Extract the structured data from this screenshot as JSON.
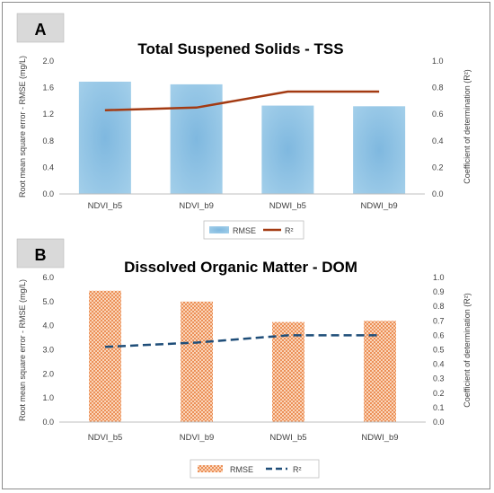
{
  "chart_data": [
    {
      "panel_label": "A",
      "type": "bar",
      "title": "Total Suspened Solids - TSS",
      "categories": [
        "NDVI_b5",
        "NDVI_b9",
        "NDWI_b5",
        "NDWI_b9"
      ],
      "ylabel": "Root mean square error - RMSE (mg/L)",
      "y2label": "Coefficient of determination (R²)",
      "ylim": [
        0,
        2.0
      ],
      "y2lim": [
        0,
        1.0
      ],
      "yticks": [
        "0.0",
        "0.4",
        "0.8",
        "1.2",
        "1.6",
        "2.0"
      ],
      "y2ticks": [
        "0.0",
        "0.2",
        "0.4",
        "0.6",
        "0.8",
        "1.0"
      ],
      "grid": false,
      "legend_position": "bottom",
      "series": [
        {
          "name": "RMSE",
          "kind": "bar",
          "axis": "left",
          "color": "#8fc3e3",
          "pattern": "solid",
          "values": [
            1.69,
            1.65,
            1.33,
            1.32
          ]
        },
        {
          "name": "R²",
          "kind": "line",
          "axis": "right",
          "color": "#a33a12",
          "style": "solid",
          "values": [
            0.63,
            0.65,
            0.77,
            0.77
          ]
        }
      ]
    },
    {
      "panel_label": "B",
      "type": "bar",
      "title": "Dissolved Organic Matter - DOM",
      "categories": [
        "NDVI_b5",
        "NDVI_b9",
        "NDWI_b5",
        "NDWI_b9"
      ],
      "ylabel": "Root mean square error - RMSE (mg/L)",
      "y2label": "Coefficient of determination (R²)",
      "ylim": [
        0,
        6.0
      ],
      "y2lim": [
        0,
        1.0
      ],
      "yticks": [
        "0.0",
        "1.0",
        "2.0",
        "3.0",
        "4.0",
        "5.0",
        "6.0"
      ],
      "y2ticks": [
        "0.0",
        "0.1",
        "0.2",
        "0.3",
        "0.4",
        "0.5",
        "0.6",
        "0.7",
        "0.8",
        "0.9",
        "1.0"
      ],
      "grid": false,
      "legend_position": "bottom",
      "series": [
        {
          "name": "RMSE",
          "kind": "bar",
          "axis": "left",
          "color": "#f0a070",
          "pattern": "dotted",
          "values": [
            5.45,
            5.0,
            4.15,
            4.2
          ]
        },
        {
          "name": "R²",
          "kind": "line",
          "axis": "right",
          "color": "#1f4e79",
          "style": "dashed",
          "values": [
            0.52,
            0.55,
            0.6,
            0.6
          ]
        }
      ]
    }
  ]
}
